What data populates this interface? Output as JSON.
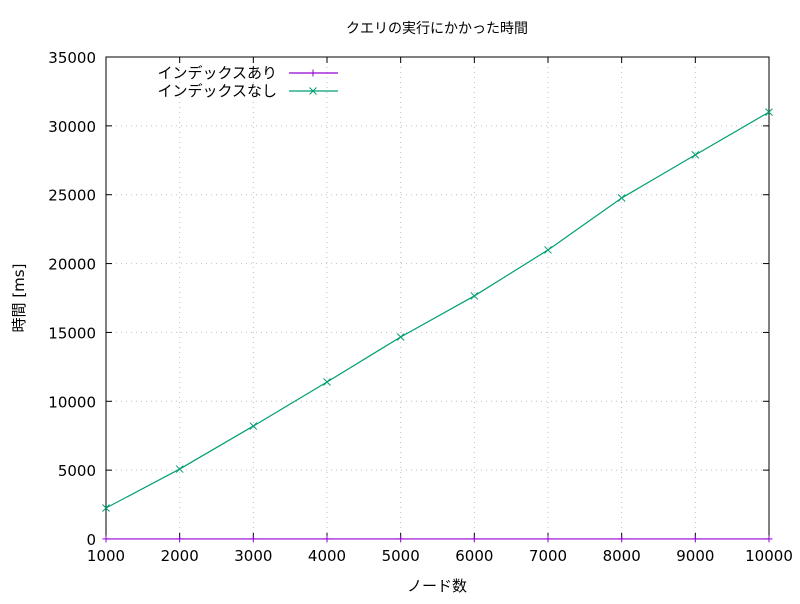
{
  "chart_data": {
    "type": "line",
    "title": "クエリの実行にかかった時間",
    "xlabel": "ノード数",
    "ylabel": "時間 [ms]",
    "xlim": [
      1000,
      10000
    ],
    "ylim": [
      0,
      35000
    ],
    "grid": true,
    "legend_position": "top-left",
    "x": [
      1000,
      2000,
      3000,
      4000,
      5000,
      6000,
      7000,
      8000,
      9000,
      10000
    ],
    "x_ticks": [
      "1000",
      "2000",
      "3000",
      "4000",
      "5000",
      "6000",
      "7000",
      "8000",
      "9000",
      "10000"
    ],
    "y_ticks": [
      "0",
      "5000",
      "10000",
      "15000",
      "20000",
      "25000",
      "30000",
      "35000"
    ],
    "series": [
      {
        "name": "インデックスあり",
        "color": "#9400d3",
        "marker": "+",
        "values": [
          5,
          5,
          5,
          5,
          5,
          5,
          5,
          5,
          5,
          5
        ]
      },
      {
        "name": "インデックスなし",
        "color": "#009e73",
        "marker": "x",
        "values": [
          2250,
          5080,
          8200,
          11400,
          14670,
          17650,
          20990,
          24760,
          27890,
          31000
        ]
      }
    ]
  }
}
